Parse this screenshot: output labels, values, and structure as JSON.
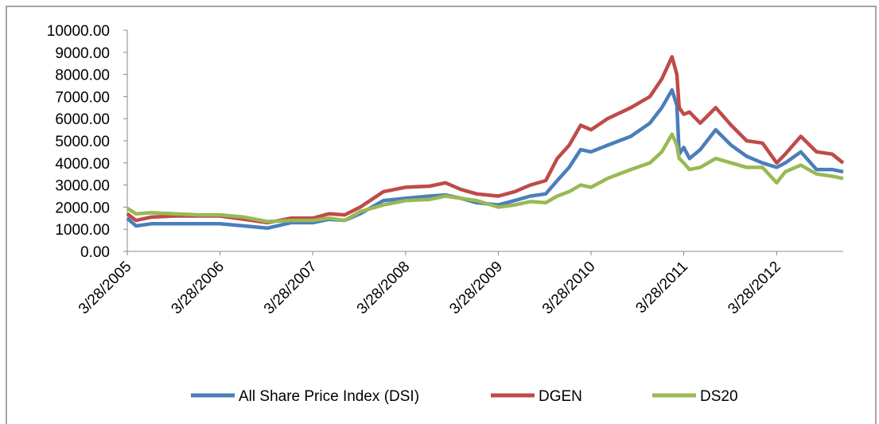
{
  "chart_data": {
    "type": "line",
    "x": [
      "3/28/2005",
      "5/1/2005",
      "7/1/2005",
      "10/1/2005",
      "1/1/2006",
      "3/28/2006",
      "7/1/2006",
      "10/1/2006",
      "1/1/2007",
      "3/28/2007",
      "6/1/2007",
      "8/1/2007",
      "10/1/2007",
      "1/1/2008",
      "3/28/2008",
      "7/1/2008",
      "9/1/2008",
      "11/1/2008",
      "1/1/2009",
      "3/28/2009",
      "6/1/2009",
      "8/1/2009",
      "10/1/2009",
      "11/15/2009",
      "1/1/2010",
      "2/15/2010",
      "3/28/2010",
      "6/1/2010",
      "9/1/2010",
      "11/15/2010",
      "1/1/2011",
      "2/10/2011",
      "3/1/2011",
      "3/10/2011",
      "3/28/2011",
      "4/20/2011",
      "6/1/2011",
      "8/1/2011",
      "10/1/2011",
      "12/1/2011",
      "2/1/2012",
      "3/28/2012",
      "5/1/2012",
      "7/1/2012",
      "9/1/2012",
      "11/1/2012",
      "12/15/2012"
    ],
    "series": [
      {
        "name": "All Share Price Index (DSI)",
        "color": "#4a7ebb",
        "values": [
          1500,
          1150,
          1250,
          1250,
          1250,
          1250,
          1150,
          1050,
          1300,
          1300,
          1450,
          1400,
          1700,
          2300,
          2400,
          2500,
          2550,
          2400,
          2200,
          2100,
          2300,
          2500,
          2600,
          3200,
          3800,
          4600,
          4500,
          4800,
          5200,
          5800,
          6500,
          7300,
          6600,
          4400,
          4700,
          4200,
          4600,
          5500,
          4800,
          4300,
          4000,
          3800,
          4000,
          4500,
          3700,
          3700,
          3600
        ]
      },
      {
        "name": "DGEN",
        "color": "#be4b48",
        "values": [
          1700,
          1400,
          1550,
          1600,
          1600,
          1600,
          1450,
          1300,
          1500,
          1500,
          1700,
          1650,
          2000,
          2700,
          2900,
          2950,
          3100,
          2800,
          2600,
          2500,
          2700,
          3000,
          3200,
          4200,
          4800,
          5700,
          5500,
          6000,
          6500,
          7000,
          7800,
          8800,
          8000,
          6500,
          6200,
          6300,
          5800,
          6500,
          5700,
          5000,
          4900,
          4000,
          4400,
          5200,
          4500,
          4400,
          4000
        ]
      },
      {
        "name": "DS20",
        "color": "#98b954",
        "values": [
          1950,
          1700,
          1750,
          1700,
          1650,
          1650,
          1550,
          1350,
          1400,
          1400,
          1500,
          1400,
          1800,
          2100,
          2300,
          2350,
          2500,
          2400,
          2300,
          2000,
          2100,
          2250,
          2200,
          2500,
          2700,
          3000,
          2900,
          3300,
          3700,
          4000,
          4500,
          5300,
          4800,
          4200,
          4000,
          3700,
          3800,
          4200,
          4000,
          3800,
          3800,
          3100,
          3600,
          3900,
          3500,
          3400,
          3300
        ]
      }
    ],
    "xlim": [
      "3/28/2005",
      "12/15/2012"
    ],
    "xticks": [
      "3/28/2005",
      "3/28/2006",
      "3/28/2007",
      "3/28/2008",
      "3/28/2009",
      "3/28/2010",
      "3/28/2011",
      "3/28/2012"
    ],
    "ylim": [
      0,
      10000
    ],
    "yticks": [
      {
        "value": 0,
        "label": "0.00"
      },
      {
        "value": 1000,
        "label": "1000.00"
      },
      {
        "value": 2000,
        "label": "2000.00"
      },
      {
        "value": 3000,
        "label": "3000.00"
      },
      {
        "value": 4000,
        "label": "4000.00"
      },
      {
        "value": 5000,
        "label": "5000.00"
      },
      {
        "value": 6000,
        "label": "6000.00"
      },
      {
        "value": 7000,
        "label": "7000.00"
      },
      {
        "value": 8000,
        "label": "8000.00"
      },
      {
        "value": 9000,
        "label": "9000.00"
      },
      {
        "value": 10000,
        "label": "10000.00"
      }
    ],
    "legend": "bottom"
  }
}
